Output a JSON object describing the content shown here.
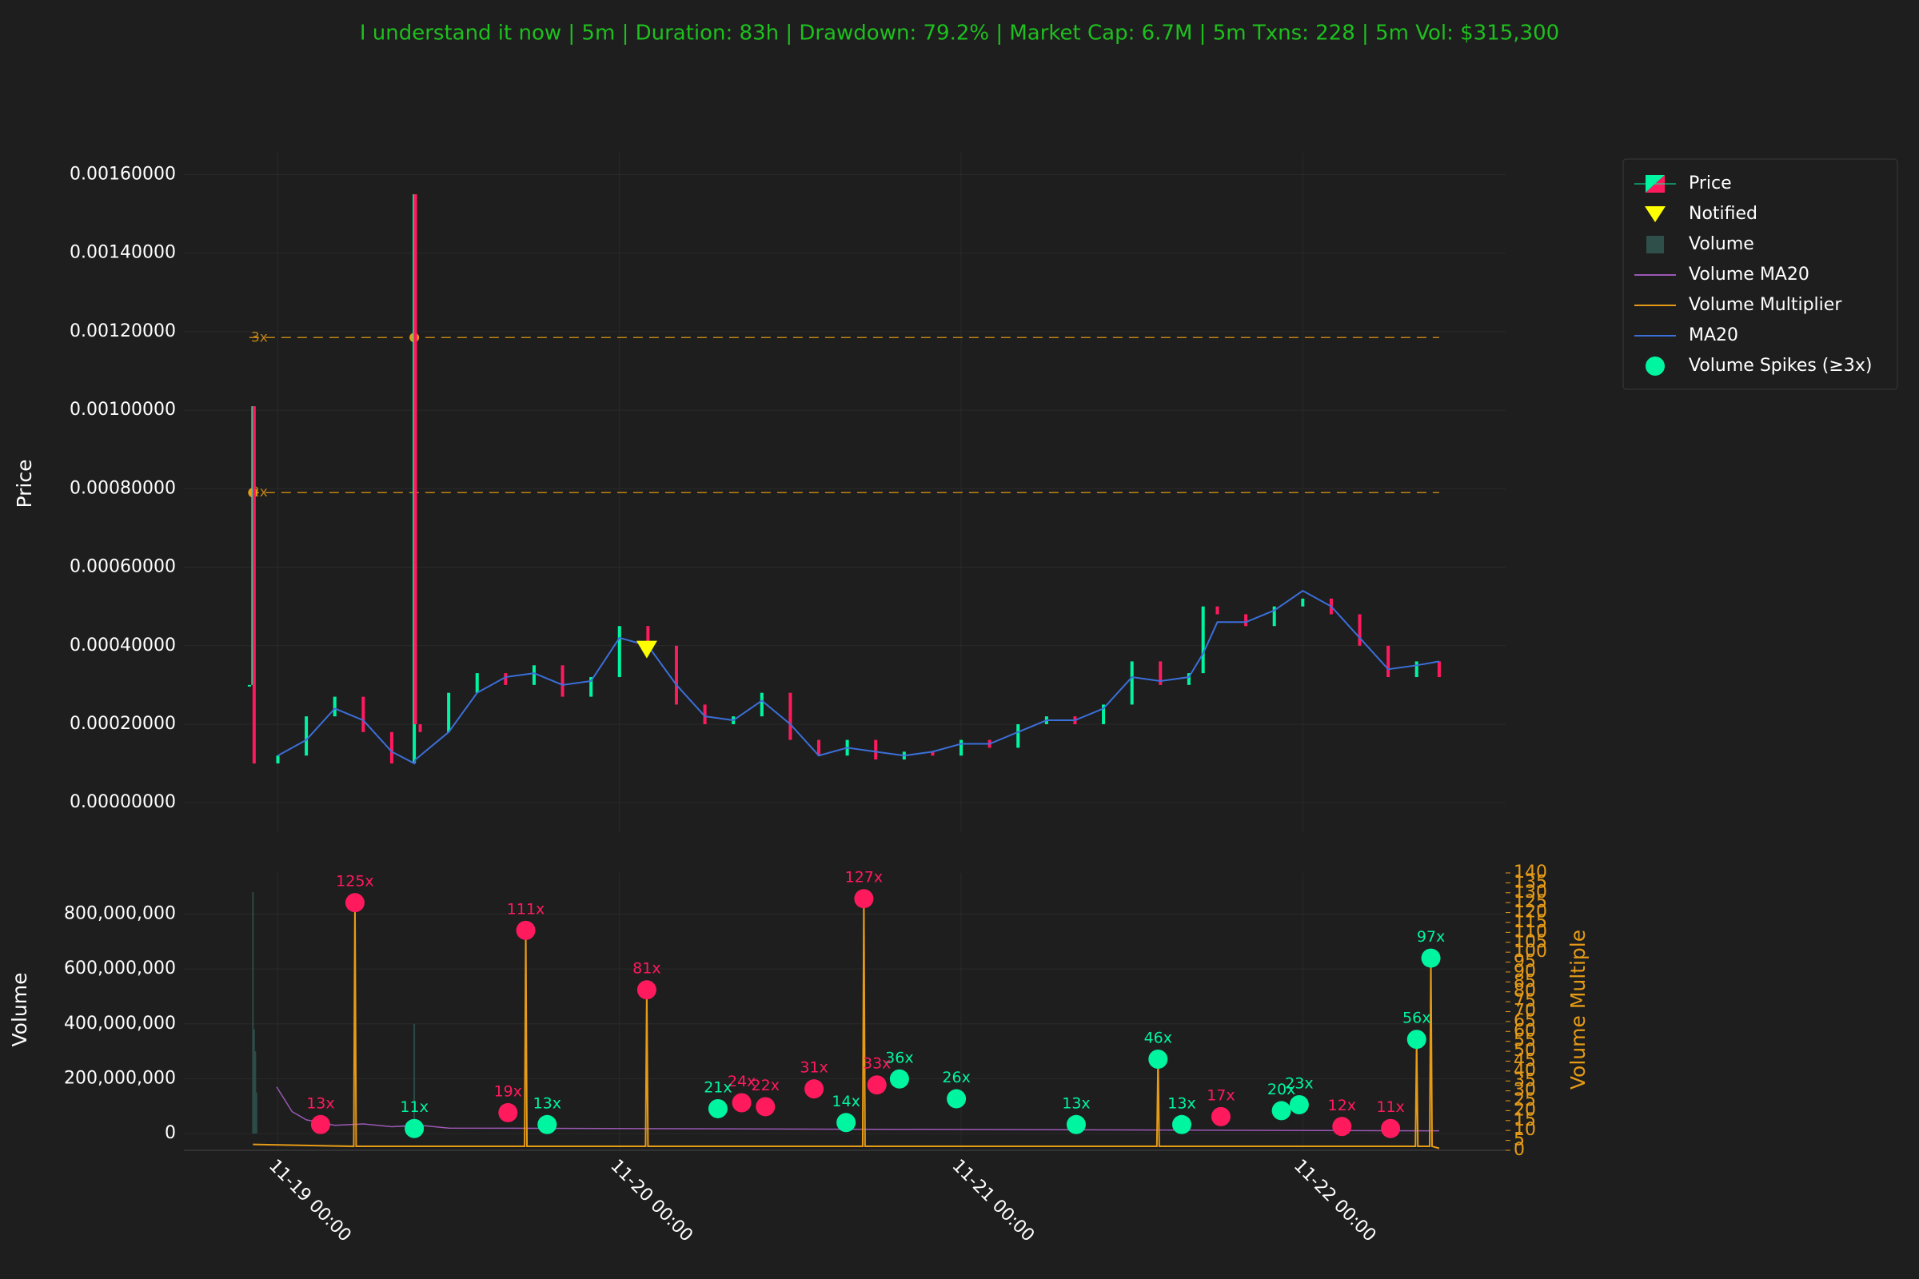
{
  "chart_data": [
    {
      "type": "price",
      "title": "I understand it now | 5m | Duration: 83h | Drawdown: 79.2% | Market Cap: 6.7M | 5m Txns: 228 | 5m Vol: $315,300",
      "ylabel": "Price",
      "xlim": [
        "11-18 17:24",
        "11-22 14:15"
      ],
      "ylim": [
        -7.5e-05,
        0.001656
      ],
      "yticks": [
        {
          "value": 0,
          "label": "0.00000000"
        },
        {
          "value": 0.0002,
          "label": "0.00020000"
        },
        {
          "value": 0.0004,
          "label": "0.00040000"
        },
        {
          "value": 0.0006,
          "label": "0.00060000"
        },
        {
          "value": 0.0008,
          "label": "0.00080000"
        },
        {
          "value": 0.001,
          "label": "0.00100000"
        },
        {
          "value": 0.0012,
          "label": "0.00120000"
        },
        {
          "value": 0.0014,
          "label": "0.00140000"
        },
        {
          "value": 0.0016,
          "label": "0.00160000"
        }
      ],
      "grid": true,
      "legend": "outside right",
      "x": [
        "11-18 22:00",
        "11-18 22:15",
        "11-18 22:20",
        "11-19 00:00",
        "11-19 02:00",
        "11-19 04:00",
        "11-19 06:00",
        "11-19 08:00",
        "11-19 09:35",
        "11-19 09:40",
        "11-19 10:00",
        "11-19 12:00",
        "11-19 14:00",
        "11-19 16:00",
        "11-19 18:00",
        "11-19 20:00",
        "11-19 22:00",
        "11-20 00:00",
        "11-20 02:00",
        "11-20 04:00",
        "11-20 06:00",
        "11-20 08:00",
        "11-20 10:00",
        "11-20 12:00",
        "11-20 14:00",
        "11-20 16:00",
        "11-20 18:00",
        "11-20 20:00",
        "11-20 22:00",
        "11-21 00:00",
        "11-21 02:00",
        "11-21 04:00",
        "11-21 06:00",
        "11-21 08:00",
        "11-21 10:00",
        "11-21 12:00",
        "11-21 14:00",
        "11-21 16:00",
        "11-21 17:00",
        "11-21 18:00",
        "11-21 20:00",
        "11-21 22:00",
        "11-22 00:00",
        "11-22 02:00",
        "11-22 04:00",
        "11-22 06:00",
        "11-22 08:00",
        "11-22 09:35"
      ],
      "series": [
        {
          "name": "Price",
          "up_color": "#00f5a0",
          "down_color": "#ff1a5e",
          "values": [
            0.0003,
            0.00101,
            0.0001,
            0.00012,
            0.00022,
            0.00027,
            0.00018,
            0.0001,
            0.00155,
            0.0002,
            0.00018,
            0.00028,
            0.00033,
            0.0003,
            0.00035,
            0.00027,
            0.00032,
            0.00045,
            0.0004,
            0.00025,
            0.0002,
            0.00022,
            0.00028,
            0.00016,
            0.00012,
            0.00016,
            0.00011,
            0.00013,
            0.00012,
            0.00016,
            0.00014,
            0.0002,
            0.00022,
            0.0002,
            0.00025,
            0.00036,
            0.0003,
            0.00033,
            0.0005,
            0.00048,
            0.00045,
            0.0005,
            0.00052,
            0.00048,
            0.0004,
            0.00032,
            0.00036,
            0.00032
          ]
        },
        {
          "name": "MA20",
          "color": "#3b6fd9",
          "values": [
            null,
            null,
            null,
            0.00012,
            0.00016,
            0.00024,
            0.00021,
            0.00013,
            0.0001,
            0.00011,
            0.00012,
            0.00018,
            0.00028,
            0.00032,
            0.00033,
            0.0003,
            0.00031,
            0.00042,
            0.0004,
            0.0003,
            0.00022,
            0.00021,
            0.00026,
            0.0002,
            0.00012,
            0.00014,
            0.00013,
            0.00012,
            0.00013,
            0.00015,
            0.00015,
            0.00018,
            0.00021,
            0.00021,
            0.00024,
            0.00032,
            0.00031,
            0.00032,
            0.00038,
            0.00046,
            0.00046,
            0.00049,
            0.00054,
            0.0005,
            0.00042,
            0.00034,
            0.00035,
            0.00036
          ]
        }
      ],
      "markers": {
        "name": "Notified",
        "color": "#ffff00",
        "x": [
          "11-20 01:55"
        ],
        "values": [
          0.00039
        ]
      },
      "level_color": "#e69b17",
      "levels": [
        {
          "label": "2x",
          "value": 0.00079,
          "x": "11-18 22:15"
        },
        {
          "label": "3x",
          "value": 0.001185,
          "x": "11-19 09:35"
        }
      ]
    },
    {
      "type": "volume",
      "ylabel": "Volume",
      "y2label": "Volume Multiple",
      "xlim": [
        "11-18 17:24",
        "11-22 14:15"
      ],
      "xticks": [
        "11-19 00:00",
        "11-20 00:00",
        "11-21 00:00",
        "11-22 00:00"
      ],
      "ylim": [
        -61000000,
        950000000
      ],
      "yticks": [
        {
          "value": 0,
          "label": "0"
        },
        {
          "value": 200000000,
          "label": "200,000,000"
        },
        {
          "value": 400000000,
          "label": "400,000,000"
        },
        {
          "value": 600000000,
          "label": "600,000,000"
        },
        {
          "value": 800000000,
          "label": "800,000,000"
        }
      ],
      "y2lim": [
        0,
        140
      ],
      "y2ticks": [
        0,
        5,
        10,
        15,
        20,
        25,
        30,
        35,
        40,
        45,
        50,
        55,
        60,
        65,
        70,
        75,
        80,
        85,
        90,
        95,
        100,
        105,
        110,
        115,
        120,
        125,
        130,
        135,
        140
      ],
      "y2color": "#e69b17",
      "series": [
        {
          "name": "Volume",
          "kind": "bar",
          "color": "#2f4f4a",
          "x": [
            "11-18 22:15",
            "11-18 22:20",
            "11-18 22:25",
            "11-18 22:30",
            "11-19 09:35"
          ],
          "values": [
            880000000,
            380000000,
            300000000,
            150000000,
            400000000
          ]
        },
        {
          "name": "Volume MA20",
          "kind": "line",
          "color": "#9b59b6",
          "x": [
            "11-18 23:55",
            "11-19 01:00",
            "11-19 02:00",
            "11-19 04:00",
            "11-19 06:00",
            "11-19 08:00",
            "11-19 10:00",
            "11-19 12:00",
            "11-22 09:35"
          ],
          "values": [
            170000000,
            80000000,
            50000000,
            30000000,
            35000000,
            25000000,
            30000000,
            20000000,
            10000000
          ]
        },
        {
          "name": "Volume Multiplier",
          "kind": "line",
          "axis": "y2",
          "color": "#e69b17",
          "x": [
            "11-18 22:15",
            "11-19 05:20",
            "11-19 05:25",
            "11-19 05:30",
            "11-19 17:20",
            "11-19 17:25",
            "11-19 17:30",
            "11-20 01:50",
            "11-20 01:55",
            "11-20 02:00",
            "11-20 17:05",
            "11-20 17:10",
            "11-20 17:15",
            "11-21 13:45",
            "11-21 13:50",
            "11-21 13:55",
            "11-22 07:55",
            "11-22 08:00",
            "11-22 08:05",
            "11-22 08:55",
            "11-22 09:00",
            "11-22 09:05",
            "11-22 09:35"
          ],
          "values": [
            3,
            2,
            125,
            2,
            2,
            111,
            2,
            2,
            81,
            2,
            2,
            127,
            2,
            2,
            46,
            2,
            2,
            56,
            2,
            2,
            97,
            2,
            1
          ]
        },
        {
          "name": "Volume Spikes (≥3x)",
          "kind": "scatter",
          "axis": "y2",
          "color": "#00f5a0",
          "x": [
            "11-19 05:25",
            "11-19 17:25",
            "11-20 01:55",
            "11-20 17:10",
            "11-22 09:00",
            "11-22 08:00",
            "11-21 13:50",
            "11-20 19:40",
            "11-20 18:05",
            "11-20 13:40",
            "11-20 23:40",
            "11-20 08:35",
            "11-20 10:15",
            "11-20 06:55",
            "11-21 23:45",
            "11-21 22:30",
            "11-19 16:10",
            "11-21 18:15",
            "11-19 03:00",
            "11-19 18:55",
            "11-19 09:35",
            "11-21 08:05",
            "11-22 02:45",
            "11-22 06:10",
            "11-20 15:55",
            "11-21 15:30"
          ],
          "values": [
            125,
            111,
            81,
            127,
            97,
            56,
            46,
            36,
            33,
            31,
            26,
            24,
            22,
            21,
            23,
            20,
            19,
            17,
            13,
            13,
            11,
            13,
            12,
            11,
            14,
            13
          ],
          "value_labels": [
            "125x",
            "111x",
            "81x",
            "127x",
            "97x",
            "56x",
            "46x",
            "36x",
            "33x",
            "31x",
            "26x",
            "24x",
            "22x",
            "21x",
            "23x",
            "20x",
            "19x",
            "17x",
            "13x",
            "13x",
            "11x",
            "13x",
            "12x",
            "11x",
            "14x",
            "13x"
          ],
          "colors": [
            "#ff1a5e",
            "#ff1a5e",
            "#ff1a5e",
            "#ff1a5e",
            "#00f5a0",
            "#00f5a0",
            "#00f5a0",
            "#00f5a0",
            "#ff1a5e",
            "#ff1a5e",
            "#00f5a0",
            "#ff1a5e",
            "#ff1a5e",
            "#00f5a0",
            "#00f5a0",
            "#00f5a0",
            "#ff1a5e",
            "#ff1a5e",
            "#ff1a5e",
            "#00f5a0",
            "#00f5a0",
            "#00f5a0",
            "#ff1a5e",
            "#ff1a5e",
            "#00f5a0",
            "#00f5a0"
          ]
        }
      ]
    }
  ]
}
